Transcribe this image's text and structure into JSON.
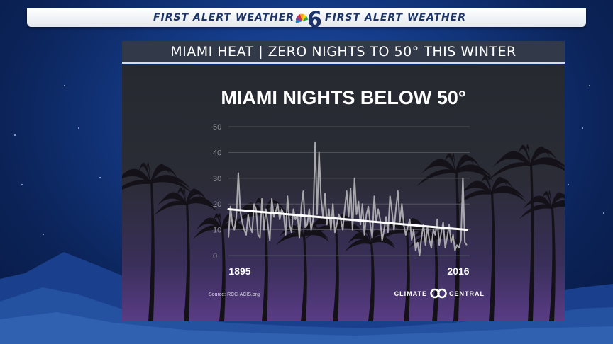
{
  "header": {
    "left_text": "FIRST ALERT WEATHER",
    "right_text": "FIRST ALERT WEATHER",
    "logo_icon": "nbc-6-logo-icon"
  },
  "title_bar": {
    "text": "MIAMI HEAT | ZERO NIGHTS TO 50° THIS WINTER"
  },
  "colors": {
    "background": "#143a86",
    "banner_text": "#1c3468",
    "panel_top": "#262a30",
    "panel_bottom": "#5a3c86",
    "series_line": "#a8a8ac",
    "trend_line": "#ffffff"
  },
  "chart_data": {
    "type": "line",
    "title": "MIAMI NIGHTS BELOW 50°",
    "x_start_label": "1895",
    "x_end_label": "2016",
    "xlim": [
      1895,
      2016
    ],
    "ylim": [
      0,
      50
    ],
    "y_ticks": [
      0,
      10,
      20,
      30,
      40,
      50
    ],
    "grid": true,
    "source": "Source: RCC-ACIS.org",
    "brand": {
      "left": "CLIMATE",
      "right": "CENTRAL"
    },
    "series": [
      {
        "x": [
          1895,
          1896,
          1897,
          1898,
          1899,
          1900,
          1901,
          1902,
          1903,
          1904,
          1905,
          1906,
          1907,
          1908,
          1909,
          1910,
          1911,
          1912,
          1913,
          1914,
          1915,
          1916,
          1917,
          1918,
          1919,
          1920,
          1921,
          1922,
          1923,
          1924,
          1925,
          1926,
          1927,
          1928,
          1929,
          1930,
          1931,
          1932,
          1933,
          1934,
          1935,
          1936,
          1937,
          1938,
          1939,
          1940,
          1941,
          1942,
          1943,
          1944,
          1945,
          1946,
          1947,
          1948,
          1949,
          1950,
          1951,
          1952,
          1953,
          1954,
          1955,
          1956,
          1957,
          1958,
          1959,
          1960,
          1961,
          1962,
          1963,
          1964,
          1965,
          1966,
          1967,
          1968,
          1969,
          1970,
          1971,
          1972,
          1973,
          1974,
          1975,
          1976,
          1977,
          1978,
          1979,
          1980,
          1981,
          1982,
          1983,
          1984,
          1985,
          1986,
          1987,
          1988,
          1989,
          1990,
          1991,
          1992,
          1993,
          1994,
          1995,
          1996,
          1997,
          1998,
          1999,
          2000,
          2001,
          2002,
          2003,
          2004,
          2005,
          2006,
          2007,
          2008,
          2009,
          2010,
          2011,
          2012,
          2013,
          2014,
          2015,
          2016
        ],
        "values": [
          7,
          19,
          12,
          10,
          15,
          32,
          17,
          13,
          10,
          8,
          16,
          11,
          9,
          20,
          18,
          8,
          7,
          22,
          10,
          18,
          12,
          6,
          22,
          15,
          17,
          20,
          14,
          18,
          16,
          8,
          23,
          12,
          9,
          18,
          14,
          16,
          7,
          19,
          25,
          11,
          12,
          18,
          10,
          14,
          44,
          16,
          40,
          22,
          15,
          24,
          12,
          18,
          10,
          20,
          9,
          12,
          16,
          14,
          10,
          18,
          25,
          15,
          26,
          10,
          30,
          16,
          21,
          12,
          20,
          8,
          16,
          19,
          12,
          7,
          23,
          13,
          18,
          14,
          6,
          10,
          15,
          9,
          23,
          17,
          10,
          18,
          25,
          13,
          20,
          12,
          8,
          11,
          14,
          6,
          10,
          2,
          5,
          0,
          7,
          12,
          4,
          11,
          6,
          3,
          10,
          8,
          14,
          4,
          9,
          13,
          3,
          7,
          12,
          5,
          8,
          2,
          4,
          3,
          6,
          30,
          5,
          4
        ]
      },
      {
        "name": "trend",
        "x": [
          1895,
          2016
        ],
        "values": [
          18,
          10
        ]
      }
    ]
  }
}
